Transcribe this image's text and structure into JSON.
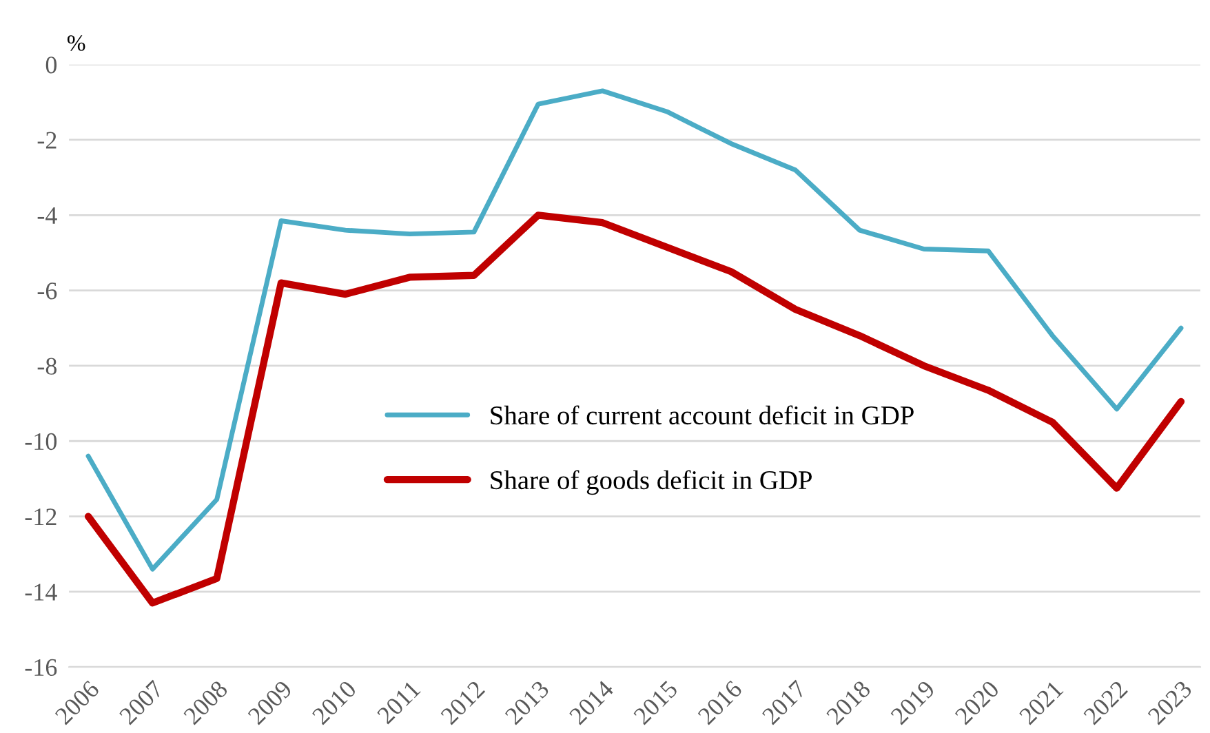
{
  "chart_data": {
    "type": "line",
    "ylabel": "%",
    "categories": [
      "2006",
      "2007",
      "2008",
      "2009",
      "2010",
      "2011",
      "2012",
      "2013",
      "2014",
      "2015",
      "2016",
      "2017",
      "2018",
      "2019",
      "2020",
      "2021",
      "2022",
      "2023"
    ],
    "series": [
      {
        "name": "Share of current account deficit in GDP",
        "color": "#4bacc6",
        "values": [
          -10.4,
          -13.4,
          -11.55,
          -4.15,
          -4.4,
          -4.5,
          -4.45,
          -1.05,
          -0.7,
          -1.25,
          -2.1,
          -2.8,
          -4.4,
          -4.9,
          -4.95,
          -7.2,
          -9.15,
          -7.0
        ]
      },
      {
        "name": "Share of goods deficit in GDP",
        "color": "#c00000",
        "values": [
          -12.0,
          -14.3,
          -13.65,
          -5.8,
          -6.1,
          -5.65,
          -5.6,
          -4.0,
          -4.2,
          -4.85,
          -5.5,
          -6.5,
          -7.2,
          -8.0,
          -8.65,
          -9.5,
          -11.25,
          -8.95
        ]
      }
    ],
    "ylim": [
      -16,
      0
    ],
    "yticks": [
      -16,
      -14,
      -12,
      -10,
      -8,
      -6,
      -4,
      -2,
      0
    ],
    "grid": "y",
    "legend": "center left",
    "marker": "none",
    "line_style": "solid"
  }
}
